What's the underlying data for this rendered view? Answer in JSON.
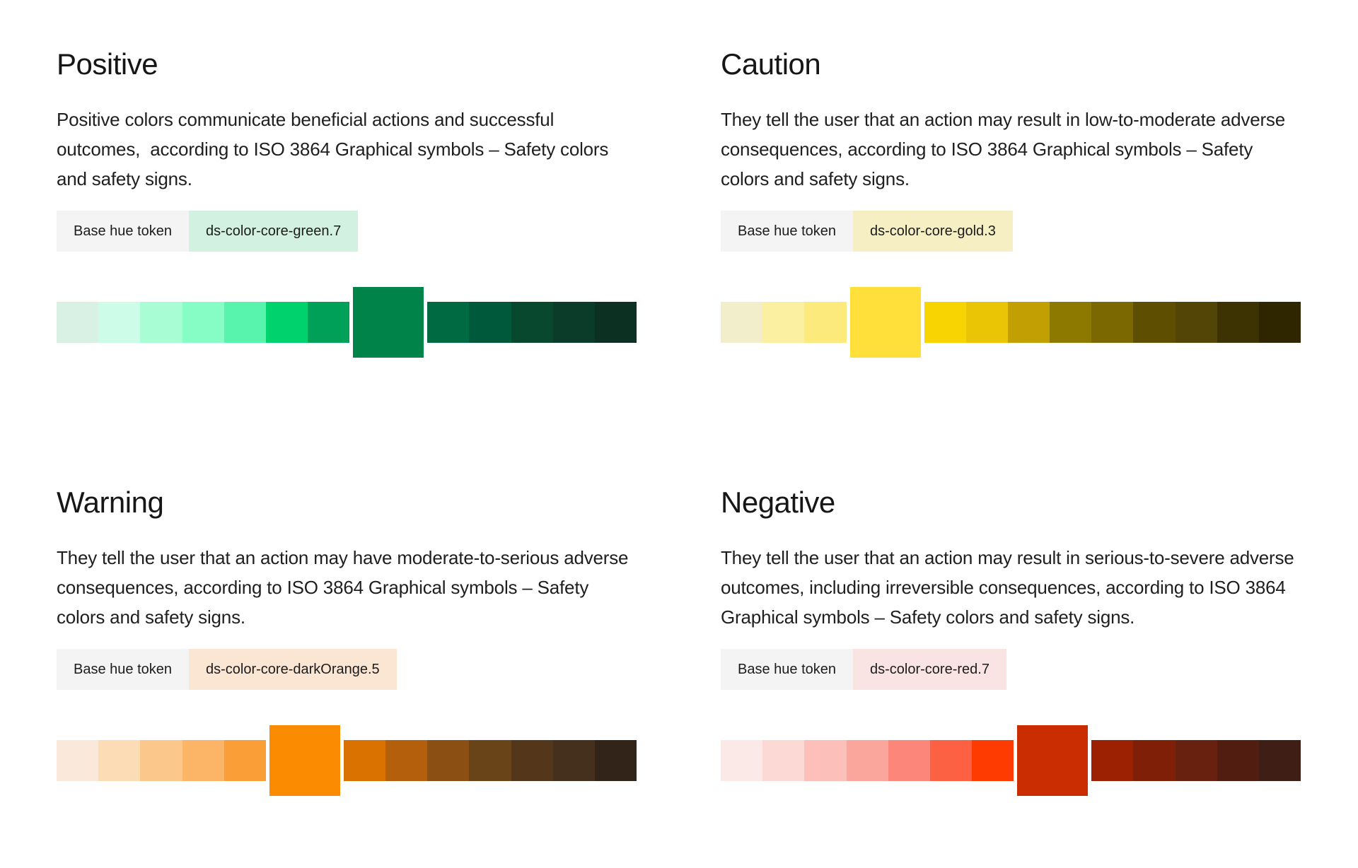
{
  "page": {
    "background": "#ffffff",
    "layout": "four color-scale sections in a 2x2 grid"
  },
  "sections": [
    {
      "id": "positive",
      "title": "Positive",
      "description": "Positive colors communicate beneficial actions and successful outcomes,  according to ISO 3864 Graphical symbols – Safety colors and safety signs.",
      "token": {
        "label": "Base hue token",
        "value": "ds-color-core-green.7",
        "label_bg": "#f4f4f4",
        "value_bg": "#d3f1e0"
      },
      "scale": {
        "base_index": 7,
        "swatches": [
          "#d9f1e4",
          "#cdfde8",
          "#a9fdd4",
          "#85fdc4",
          "#58f3ac",
          "#00d26e",
          "#00a058",
          "#008349",
          "#006b43",
          "#00593a",
          "#07482f",
          "#0b3c29",
          "#0c3123"
        ]
      }
    },
    {
      "id": "caution",
      "title": "Caution",
      "description": "They tell the user that an action may result in low-to-moderate adverse consequences, according to ISO 3864 Graphical symbols – Safety colors and safety signs.",
      "token": {
        "label": "Base hue token",
        "value": "ds-color-core-gold.3",
        "label_bg": "#f4f4f4",
        "value_bg": "#f6efc4"
      },
      "scale": {
        "base_index": 3,
        "swatches": [
          "#f2eecb",
          "#fbf0a2",
          "#fcea7d",
          "#ffe03b",
          "#f8d402",
          "#e9c506",
          "#c2a004",
          "#8e7900",
          "#7c6800",
          "#5e4e02",
          "#534505",
          "#3c3202",
          "#2f2600"
        ]
      }
    },
    {
      "id": "warning",
      "title": "Warning",
      "description": "They tell the user that an action may have moderate-to-serious adverse consequences, according to ISO 3864 Graphical symbols – Safety colors and safety signs.",
      "token": {
        "label": "Base hue token",
        "value": "ds-color-core-darkOrange.5",
        "label_bg": "#f4f4f4",
        "value_bg": "#fbe5d3"
      },
      "scale": {
        "base_index": 5,
        "swatches": [
          "#fae8da",
          "#fcdcb5",
          "#fcc78b",
          "#fcb567",
          "#fa9f38",
          "#fb8b00",
          "#da7200",
          "#b45f0b",
          "#8b4e13",
          "#694419",
          "#54361b",
          "#45301d",
          "#33241a"
        ]
      }
    },
    {
      "id": "negative",
      "title": "Negative",
      "description": "They tell the user that an action may result in serious-to-severe adverse outcomes, including irreversible consequences, according to ISO 3864 Graphical symbols – Safety colors and safety signs.",
      "token": {
        "label": "Base hue token",
        "value": "ds-color-core-red.7",
        "label_bg": "#f4f4f4",
        "value_bg": "#fae3e3"
      },
      "scale": {
        "base_index": 7,
        "swatches": [
          "#fbe9e7",
          "#fcd9d5",
          "#fcbfb9",
          "#fba69d",
          "#fc8679",
          "#fc6144",
          "#fe3b00",
          "#cb2d03",
          "#9b2102",
          "#7f1f07",
          "#68200f",
          "#521d11",
          "#3f1f15"
        ]
      }
    }
  ]
}
